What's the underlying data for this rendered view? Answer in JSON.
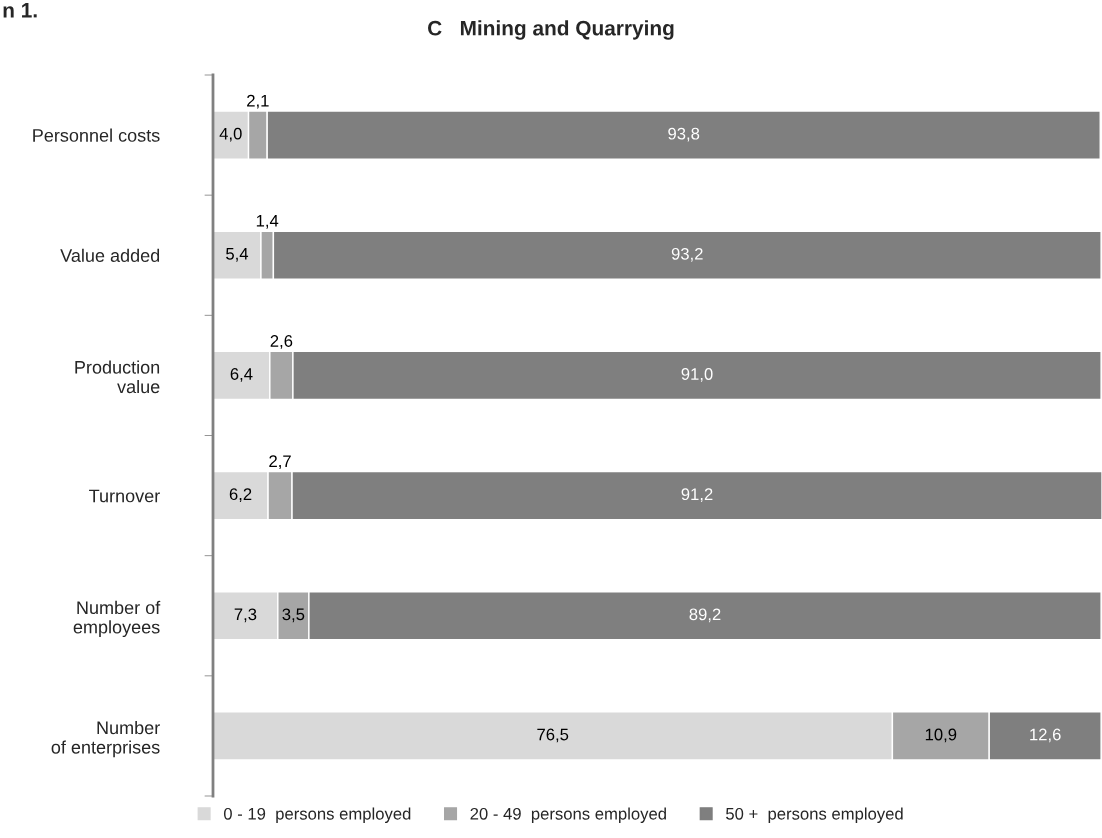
{
  "chart_data": {
    "type": "bar",
    "orientation": "horizontal",
    "stacked": true,
    "title": "C   Mining and Quarrying",
    "annotations": [
      "n 1."
    ],
    "categories": [
      "Personnel costs",
      "Value added",
      "Production\nvalue",
      "Turnover",
      "Number of\nemployees",
      "Number\nof enterprises"
    ],
    "series": [
      {
        "name": "0 - 19  persons employed",
        "color": "#d9d9d9",
        "values": [
          4.0,
          5.4,
          6.4,
          6.2,
          7.3,
          76.5
        ],
        "value_labels": [
          "4,0",
          "5,4",
          "6,4",
          "6,2",
          "7,3",
          "76,5"
        ]
      },
      {
        "name": "20 - 49  persons employed",
        "color": "#a6a6a6",
        "values": [
          2.1,
          1.4,
          2.6,
          2.7,
          3.5,
          10.9
        ],
        "value_labels": [
          "2,1",
          "1,4",
          "2,6",
          "2,7",
          "3,5",
          "10,9"
        ]
      },
      {
        "name": "50 +  persons employed",
        "color": "#7f7f7f",
        "values": [
          93.8,
          93.2,
          91.0,
          91.2,
          89.2,
          12.6
        ],
        "value_labels": [
          "93,8",
          "93,2",
          "91,0",
          "91,2",
          "89,2",
          "12,6"
        ]
      }
    ],
    "legend": "bottom",
    "grid": false
  }
}
